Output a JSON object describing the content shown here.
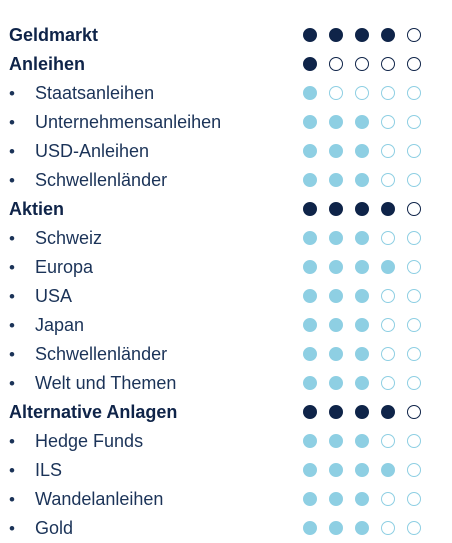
{
  "colors": {
    "dark": "#0f2449",
    "light": "#8ecfe3"
  },
  "bullet_symbol": "•",
  "rows": [
    {
      "label": "Geldmarkt",
      "type": "header",
      "rating": 4
    },
    {
      "label": "Anleihen",
      "type": "header",
      "rating": 1
    },
    {
      "label": "Staatsanleihen",
      "type": "sub",
      "rating": 1
    },
    {
      "label": "Unternehmensanleihen",
      "type": "sub",
      "rating": 3
    },
    {
      "label": "USD-Anleihen",
      "type": "sub",
      "rating": 3
    },
    {
      "label": "Schwellenländer",
      "type": "sub",
      "rating": 3
    },
    {
      "label": "Aktien",
      "type": "header",
      "rating": 4
    },
    {
      "label": "Schweiz",
      "type": "sub",
      "rating": 3
    },
    {
      "label": "Europa",
      "type": "sub",
      "rating": 4
    },
    {
      "label": "USA",
      "type": "sub",
      "rating": 3
    },
    {
      "label": "Japan",
      "type": "sub",
      "rating": 3
    },
    {
      "label": "Schwellenländer",
      "type": "sub",
      "rating": 3
    },
    {
      "label": "Welt und Themen",
      "type": "sub",
      "rating": 3
    },
    {
      "label": "Alternative Anlagen",
      "type": "header",
      "rating": 4
    },
    {
      "label": "Hedge Funds",
      "type": "sub",
      "rating": 3
    },
    {
      "label": "ILS",
      "type": "sub",
      "rating": 4
    },
    {
      "label": "Wandelanleihen",
      "type": "sub",
      "rating": 3
    },
    {
      "label": "Gold",
      "type": "sub",
      "rating": 3
    }
  ],
  "max_rating": 5
}
